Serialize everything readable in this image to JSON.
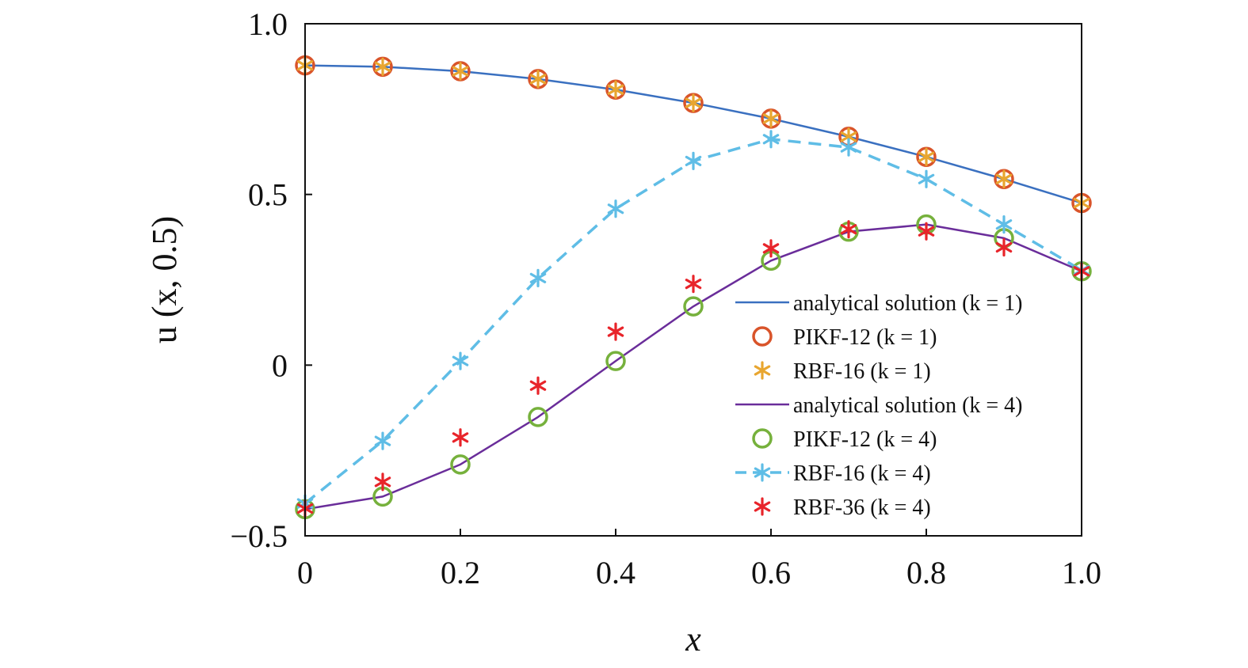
{
  "chart_data": {
    "type": "line",
    "xlabel": "x",
    "ylabel": "u (x, 0.5)",
    "xlim": [
      0,
      1.0
    ],
    "ylim": [
      -0.5,
      1.0
    ],
    "x_ticks": [
      "0",
      "0.2",
      "0.4",
      "0.6",
      "0.8",
      "1.0"
    ],
    "y_ticks": [
      "−0.5",
      "0",
      "0.5",
      "1.0"
    ],
    "grid": false,
    "legend_position": "bottom-right",
    "series": [
      {
        "name": "analytical solution (k = 1)",
        "kind": "line",
        "style": "solid",
        "color": "#3a70c0",
        "x": [
          0,
          0.1,
          0.2,
          0.3,
          0.4,
          0.5,
          0.6,
          0.7,
          0.8,
          0.9,
          1.0
        ],
        "y": [
          0.878,
          0.874,
          0.861,
          0.838,
          0.807,
          0.768,
          0.722,
          0.669,
          0.61,
          0.545,
          0.475
        ]
      },
      {
        "name": "PIKF-12 (k = 1)",
        "kind": "marker",
        "marker": "circle",
        "color": "#d9542a",
        "x": [
          0,
          0.1,
          0.2,
          0.3,
          0.4,
          0.5,
          0.6,
          0.7,
          0.8,
          0.9,
          1.0
        ],
        "y": [
          0.878,
          0.874,
          0.861,
          0.838,
          0.807,
          0.768,
          0.722,
          0.669,
          0.61,
          0.545,
          0.475
        ]
      },
      {
        "name": "RBF-16 (k = 1)",
        "kind": "marker",
        "marker": "asterisk",
        "color": "#e8a630",
        "x": [
          0,
          0.1,
          0.2,
          0.3,
          0.4,
          0.5,
          0.6,
          0.7,
          0.8,
          0.9,
          1.0
        ],
        "y": [
          0.878,
          0.874,
          0.861,
          0.838,
          0.807,
          0.768,
          0.722,
          0.669,
          0.61,
          0.545,
          0.475
        ]
      },
      {
        "name": "analytical solution (k = 4)",
        "kind": "line",
        "style": "solid",
        "color": "#6a2d9a",
        "x": [
          0,
          0.1,
          0.2,
          0.3,
          0.4,
          0.5,
          0.6,
          0.7,
          0.8,
          0.9,
          1.0
        ],
        "y": [
          -0.422,
          -0.385,
          -0.291,
          -0.152,
          0.012,
          0.172,
          0.306,
          0.391,
          0.412,
          0.372,
          0.275
        ]
      },
      {
        "name": "PIKF-12 (k = 4)",
        "kind": "marker",
        "marker": "circle",
        "color": "#76b13c",
        "x": [
          0,
          0.1,
          0.2,
          0.3,
          0.4,
          0.5,
          0.6,
          0.7,
          0.8,
          0.9,
          1.0
        ],
        "y": [
          -0.422,
          -0.385,
          -0.291,
          -0.152,
          0.012,
          0.172,
          0.306,
          0.391,
          0.412,
          0.372,
          0.275
        ]
      },
      {
        "name": "RBF-16 (k = 4)",
        "kind": "line+marker",
        "style": "dashed",
        "marker": "asterisk",
        "color": "#5fbde6",
        "x": [
          0,
          0.1,
          0.2,
          0.3,
          0.4,
          0.5,
          0.6,
          0.7,
          0.8,
          0.9,
          1.0
        ],
        "y": [
          -0.405,
          -0.222,
          0.012,
          0.255,
          0.458,
          0.598,
          0.662,
          0.638,
          0.545,
          0.412,
          0.278
        ]
      },
      {
        "name": "RBF-36 (k = 4)",
        "kind": "marker",
        "marker": "asterisk",
        "color": "#e8242a",
        "x": [
          0,
          0.1,
          0.2,
          0.3,
          0.4,
          0.5,
          0.6,
          0.7,
          0.8,
          0.9,
          1.0
        ],
        "y": [
          -0.42,
          -0.342,
          -0.212,
          -0.06,
          0.098,
          0.238,
          0.342,
          0.398,
          0.392,
          0.345,
          0.275
        ]
      }
    ]
  }
}
